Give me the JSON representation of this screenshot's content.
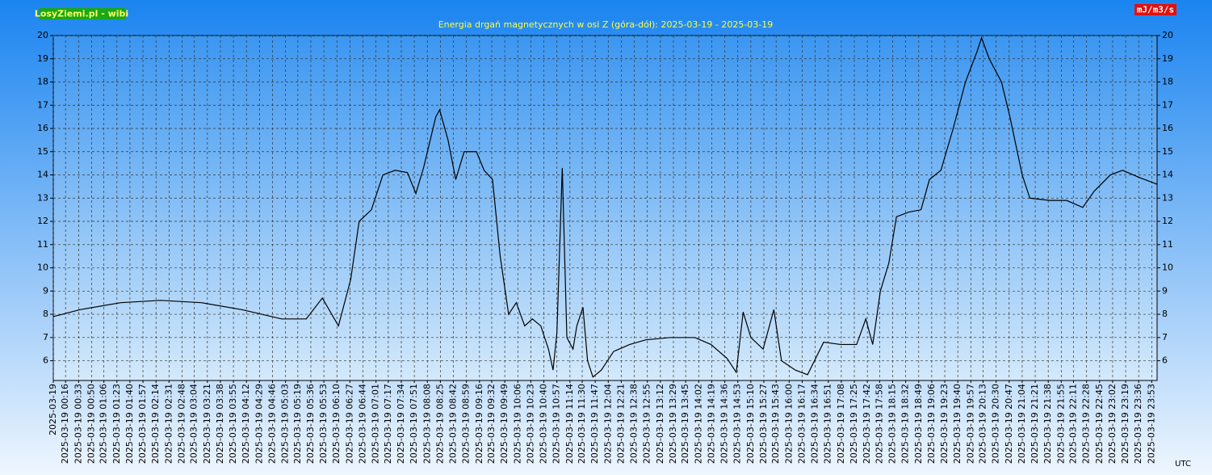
{
  "chart_data": {
    "type": "line",
    "brand": "LosyZiemi.pl - wibi",
    "unit": "mJ/m3/s",
    "title": "Energia drgań magnetycznych w osi Z (góra-dół): 2025-03-19 - 2025-03-19",
    "xlabel": "UTC",
    "grid": true,
    "xlim": [
      0,
      1440
    ],
    "ylim": [
      5.15,
      20
    ],
    "yticks": [
      6,
      7,
      8,
      9,
      10,
      11,
      12,
      13,
      14,
      15,
      16,
      17,
      18,
      19,
      20
    ],
    "xticks": [
      {
        "value": 0,
        "label": "2025-03-19"
      },
      {
        "value": 16,
        "label": "2025-03-19 00:16"
      },
      {
        "value": 33,
        "label": "2025-03-19 00:33"
      },
      {
        "value": 50,
        "label": "2025-03-19 00:50"
      },
      {
        "value": 66,
        "label": "2025-03-19 01:06"
      },
      {
        "value": 83,
        "label": "2025-03-19 01:23"
      },
      {
        "value": 100,
        "label": "2025-03-19 01:40"
      },
      {
        "value": 117,
        "label": "2025-03-19 01:57"
      },
      {
        "value": 134,
        "label": "2025-03-19 02:14"
      },
      {
        "value": 151,
        "label": "2025-03-19 02:31"
      },
      {
        "value": 168,
        "label": "2025-03-19 02:48"
      },
      {
        "value": 184,
        "label": "2025-03-19 03:04"
      },
      {
        "value": 201,
        "label": "2025-03-19 03:21"
      },
      {
        "value": 218,
        "label": "2025-03-19 03:38"
      },
      {
        "value": 235,
        "label": "2025-03-19 03:55"
      },
      {
        "value": 252,
        "label": "2025-03-19 04:12"
      },
      {
        "value": 269,
        "label": "2025-03-19 04:29"
      },
      {
        "value": 286,
        "label": "2025-03-19 04:46"
      },
      {
        "value": 303,
        "label": "2025-03-19 05:03"
      },
      {
        "value": 319,
        "label": "2025-03-19 05:19"
      },
      {
        "value": 336,
        "label": "2025-03-19 05:36"
      },
      {
        "value": 353,
        "label": "2025-03-19 05:53"
      },
      {
        "value": 370,
        "label": "2025-03-19 06:10"
      },
      {
        "value": 387,
        "label": "2025-03-19 06:27"
      },
      {
        "value": 404,
        "label": "2025-03-19 06:44"
      },
      {
        "value": 421,
        "label": "2025-03-19 07:01"
      },
      {
        "value": 437,
        "label": "2025-03-19 07:17"
      },
      {
        "value": 454,
        "label": "2025-03-19 07:34"
      },
      {
        "value": 471,
        "label": "2025-03-19 07:51"
      },
      {
        "value": 488,
        "label": "2025-03-19 08:08"
      },
      {
        "value": 505,
        "label": "2025-03-19 08:25"
      },
      {
        "value": 522,
        "label": "2025-03-19 08:42"
      },
      {
        "value": 539,
        "label": "2025-03-19 08:59"
      },
      {
        "value": 556,
        "label": "2025-03-19 09:16"
      },
      {
        "value": 572,
        "label": "2025-03-19 09:32"
      },
      {
        "value": 589,
        "label": "2025-03-19 09:49"
      },
      {
        "value": 606,
        "label": "2025-03-19 10:06"
      },
      {
        "value": 623,
        "label": "2025-03-19 10:23"
      },
      {
        "value": 640,
        "label": "2025-03-19 10:40"
      },
      {
        "value": 657,
        "label": "2025-03-19 10:57"
      },
      {
        "value": 674,
        "label": "2025-03-19 11:14"
      },
      {
        "value": 690,
        "label": "2025-03-19 11:30"
      },
      {
        "value": 707,
        "label": "2025-03-19 11:47"
      },
      {
        "value": 724,
        "label": "2025-03-19 12:04"
      },
      {
        "value": 741,
        "label": "2025-03-19 12:21"
      },
      {
        "value": 758,
        "label": "2025-03-19 12:38"
      },
      {
        "value": 775,
        "label": "2025-03-19 12:55"
      },
      {
        "value": 792,
        "label": "2025-03-19 13:12"
      },
      {
        "value": 809,
        "label": "2025-03-19 13:29"
      },
      {
        "value": 825,
        "label": "2025-03-19 13:45"
      },
      {
        "value": 842,
        "label": "2025-03-19 14:02"
      },
      {
        "value": 859,
        "label": "2025-03-19 14:19"
      },
      {
        "value": 876,
        "label": "2025-03-19 14:36"
      },
      {
        "value": 893,
        "label": "2025-03-19 14:53"
      },
      {
        "value": 910,
        "label": "2025-03-19 15:10"
      },
      {
        "value": 927,
        "label": "2025-03-19 15:27"
      },
      {
        "value": 943,
        "label": "2025-03-19 15:43"
      },
      {
        "value": 960,
        "label": "2025-03-19 16:00"
      },
      {
        "value": 977,
        "label": "2025-03-19 16:17"
      },
      {
        "value": 994,
        "label": "2025-03-19 16:34"
      },
      {
        "value": 1011,
        "label": "2025-03-19 16:51"
      },
      {
        "value": 1028,
        "label": "2025-03-19 17:08"
      },
      {
        "value": 1045,
        "label": "2025-03-19 17:25"
      },
      {
        "value": 1062,
        "label": "2025-03-19 17:42"
      },
      {
        "value": 1078,
        "label": "2025-03-19 17:58"
      },
      {
        "value": 1095,
        "label": "2025-03-19 18:15"
      },
      {
        "value": 1112,
        "label": "2025-03-19 18:32"
      },
      {
        "value": 1129,
        "label": "2025-03-19 18:49"
      },
      {
        "value": 1146,
        "label": "2025-03-19 19:06"
      },
      {
        "value": 1163,
        "label": "2025-03-19 19:23"
      },
      {
        "value": 1180,
        "label": "2025-03-19 19:40"
      },
      {
        "value": 1197,
        "label": "2025-03-19 19:57"
      },
      {
        "value": 1213,
        "label": "2025-03-19 20:13"
      },
      {
        "value": 1230,
        "label": "2025-03-19 20:30"
      },
      {
        "value": 1247,
        "label": "2025-03-19 20:47"
      },
      {
        "value": 1264,
        "label": "2025-03-19 21:04"
      },
      {
        "value": 1281,
        "label": "2025-03-19 21:21"
      },
      {
        "value": 1298,
        "label": "2025-03-19 21:38"
      },
      {
        "value": 1315,
        "label": "2025-03-19 21:55"
      },
      {
        "value": 1331,
        "label": "2025-03-19 22:11"
      },
      {
        "value": 1348,
        "label": "2025-03-19 22:28"
      },
      {
        "value": 1365,
        "label": "2025-03-19 22:45"
      },
      {
        "value": 1382,
        "label": "2025-03-19 23:02"
      },
      {
        "value": 1399,
        "label": "2025-03-19 23:19"
      },
      {
        "value": 1416,
        "label": "2025-03-19 23:36"
      },
      {
        "value": 1433,
        "label": "2025-03-19 23:53"
      }
    ],
    "x": [
      0,
      35,
      88,
      140,
      193,
      246,
      298,
      330,
      351,
      372,
      388,
      399,
      415,
      430,
      446,
      462,
      473,
      483,
      499,
      504,
      515,
      525,
      536,
      552,
      562,
      573,
      583,
      594,
      604,
      615,
      625,
      636,
      646,
      652,
      657,
      664,
      670,
      678,
      683,
      691,
      697,
      704,
      715,
      731,
      752,
      773,
      805,
      837,
      858,
      879,
      891,
      900,
      910,
      926,
      940,
      950,
      968,
      984,
      1005,
      1027,
      1048,
      1060,
      1069,
      1079,
      1090,
      1100,
      1116,
      1132,
      1143,
      1158,
      1174,
      1190,
      1205,
      1211,
      1221,
      1237,
      1248,
      1264,
      1274,
      1300,
      1322,
      1343,
      1358,
      1379,
      1395,
      1416,
      1440
    ],
    "series": [
      {
        "color": "#000000",
        "values": [
          7.9,
          8.2,
          8.5,
          8.6,
          8.5,
          8.2,
          7.8,
          7.8,
          8.7,
          7.5,
          9.5,
          12.0,
          12.5,
          14.0,
          14.2,
          14.1,
          13.2,
          14.3,
          16.5,
          16.8,
          15.5,
          13.8,
          15.0,
          15.0,
          14.2,
          13.8,
          10.5,
          8.0,
          8.5,
          7.5,
          7.8,
          7.5,
          6.5,
          5.6,
          7.2,
          14.3,
          7.0,
          6.5,
          7.5,
          8.3,
          6.0,
          5.3,
          5.6,
          6.4,
          6.7,
          6.9,
          7.0,
          7.0,
          6.7,
          6.1,
          5.5,
          8.1,
          7.0,
          6.5,
          8.2,
          6.0,
          5.6,
          5.4,
          6.8,
          6.7,
          6.7,
          7.8,
          6.7,
          9.0,
          10.2,
          12.2,
          12.4,
          12.5,
          13.8,
          14.2,
          16.0,
          18.0,
          19.3,
          19.9,
          19.0,
          18.0,
          16.5,
          14.0,
          13.0,
          12.9,
          12.9,
          12.6,
          13.3,
          14.0,
          14.2,
          13.9,
          13.6
        ]
      }
    ]
  }
}
